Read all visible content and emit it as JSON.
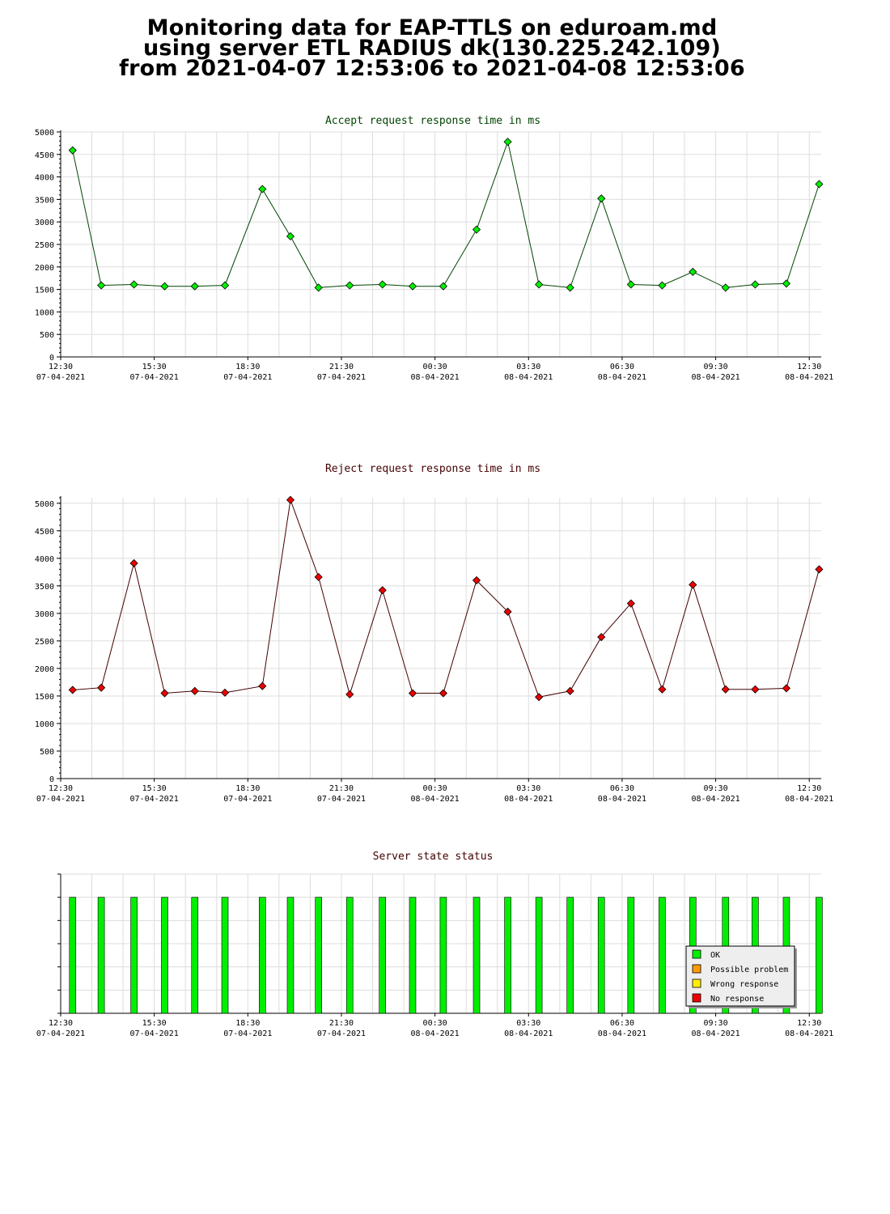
{
  "header": {
    "line1": "Monitoring data for EAP-TTLS on eduroam.md",
    "line2": "using server ETL RADIUS dk(130.225.242.109)",
    "line3": "from 2021-04-07 12:53:06 to 2021-04-08 12:53:06"
  },
  "chart_data": [
    {
      "type": "line",
      "title": "Accept request response time in ms",
      "title_color": "#004400",
      "marker_color": "#00ee00",
      "line_color": "#004400",
      "grid": true,
      "x_range": [
        "2021-04-07 12:30",
        "2021-04-08 12:53"
      ],
      "ylim": [
        0,
        5000
      ],
      "yticks": [
        0,
        500,
        1000,
        1500,
        2000,
        2500,
        3000,
        3500,
        4000,
        4500,
        5000
      ],
      "x_tick_labels": [
        {
          "time": "12:30",
          "date": "07-04-2021"
        },
        {
          "time": "15:30",
          "date": "07-04-2021"
        },
        {
          "time": "18:30",
          "date": "07-04-2021"
        },
        {
          "time": "21:30",
          "date": "07-04-2021"
        },
        {
          "time": "00:30",
          "date": "08-04-2021"
        },
        {
          "time": "03:30",
          "date": "08-04-2021"
        },
        {
          "time": "06:30",
          "date": "08-04-2021"
        },
        {
          "time": "09:30",
          "date": "08-04-2021"
        },
        {
          "time": "12:30",
          "date": "08-04-2021"
        }
      ],
      "points": [
        {
          "t": "2021-04-07 12:53",
          "y": 4590
        },
        {
          "t": "2021-04-07 13:48",
          "y": 1590
        },
        {
          "t": "2021-04-07 14:51",
          "y": 1610
        },
        {
          "t": "2021-04-07 15:50",
          "y": 1570
        },
        {
          "t": "2021-04-07 16:48",
          "y": 1570
        },
        {
          "t": "2021-04-07 17:46",
          "y": 1590
        },
        {
          "t": "2021-04-07 18:58",
          "y": 3730
        },
        {
          "t": "2021-04-07 19:52",
          "y": 2680
        },
        {
          "t": "2021-04-07 20:46",
          "y": 1540
        },
        {
          "t": "2021-04-07 21:46",
          "y": 1590
        },
        {
          "t": "2021-04-07 22:49",
          "y": 1610
        },
        {
          "t": "2021-04-07 23:47",
          "y": 1570
        },
        {
          "t": "2021-04-08 00:46",
          "y": 1570
        },
        {
          "t": "2021-04-08 01:50",
          "y": 2830
        },
        {
          "t": "2021-04-08 02:50",
          "y": 4780
        },
        {
          "t": "2021-04-08 03:50",
          "y": 1610
        },
        {
          "t": "2021-04-08 04:50",
          "y": 1540
        },
        {
          "t": "2021-04-08 05:50",
          "y": 3520
        },
        {
          "t": "2021-04-08 06:47",
          "y": 1610
        },
        {
          "t": "2021-04-08 07:47",
          "y": 1590
        },
        {
          "t": "2021-04-08 08:46",
          "y": 1890
        },
        {
          "t": "2021-04-08 09:49",
          "y": 1540
        },
        {
          "t": "2021-04-08 10:46",
          "y": 1610
        },
        {
          "t": "2021-04-08 11:46",
          "y": 1630
        },
        {
          "t": "2021-04-08 12:49",
          "y": 3840
        }
      ]
    },
    {
      "type": "line",
      "title": "Reject request response time in ms",
      "title_color": "#440000",
      "marker_color": "#ee0000",
      "line_color": "#440000",
      "grid": true,
      "x_range": [
        "2021-04-07 12:30",
        "2021-04-08 12:53"
      ],
      "ylim": [
        0,
        5100
      ],
      "yticks": [
        0,
        500,
        1000,
        1500,
        2000,
        2500,
        3000,
        3500,
        4000,
        4500,
        5000
      ],
      "x_tick_labels": [
        {
          "time": "12:30",
          "date": "07-04-2021"
        },
        {
          "time": "15:30",
          "date": "07-04-2021"
        },
        {
          "time": "18:30",
          "date": "07-04-2021"
        },
        {
          "time": "21:30",
          "date": "07-04-2021"
        },
        {
          "time": "00:30",
          "date": "08-04-2021"
        },
        {
          "time": "03:30",
          "date": "08-04-2021"
        },
        {
          "time": "06:30",
          "date": "08-04-2021"
        },
        {
          "time": "09:30",
          "date": "08-04-2021"
        },
        {
          "time": "12:30",
          "date": "08-04-2021"
        }
      ],
      "points": [
        {
          "t": "2021-04-07 12:53",
          "y": 1610
        },
        {
          "t": "2021-04-07 13:48",
          "y": 1650
        },
        {
          "t": "2021-04-07 14:51",
          "y": 3910
        },
        {
          "t": "2021-04-07 15:50",
          "y": 1550
        },
        {
          "t": "2021-04-07 16:48",
          "y": 1590
        },
        {
          "t": "2021-04-07 17:46",
          "y": 1560
        },
        {
          "t": "2021-04-07 18:58",
          "y": 1680
        },
        {
          "t": "2021-04-07 19:52",
          "y": 5060
        },
        {
          "t": "2021-04-07 20:46",
          "y": 3660
        },
        {
          "t": "2021-04-07 21:46",
          "y": 1530
        },
        {
          "t": "2021-04-07 22:49",
          "y": 3420
        },
        {
          "t": "2021-04-07 23:47",
          "y": 1550
        },
        {
          "t": "2021-04-08 00:46",
          "y": 1550
        },
        {
          "t": "2021-04-08 01:50",
          "y": 3600
        },
        {
          "t": "2021-04-08 02:50",
          "y": 3030
        },
        {
          "t": "2021-04-08 03:50",
          "y": 1480
        },
        {
          "t": "2021-04-08 04:50",
          "y": 1590
        },
        {
          "t": "2021-04-08 05:50",
          "y": 2570
        },
        {
          "t": "2021-04-08 06:47",
          "y": 3180
        },
        {
          "t": "2021-04-08 07:47",
          "y": 1620
        },
        {
          "t": "2021-04-08 08:46",
          "y": 3520
        },
        {
          "t": "2021-04-08 09:49",
          "y": 1620
        },
        {
          "t": "2021-04-08 10:46",
          "y": 1620
        },
        {
          "t": "2021-04-08 11:46",
          "y": 1640
        },
        {
          "t": "2021-04-08 12:49",
          "y": 3800
        }
      ]
    },
    {
      "type": "bar",
      "title": "Server state status",
      "title_color": "#440000",
      "x_range": [
        "2021-04-07 12:30",
        "2021-04-08 12:53"
      ],
      "x_tick_labels": [
        {
          "time": "12:30",
          "date": "07-04-2021"
        },
        {
          "time": "15:30",
          "date": "07-04-2021"
        },
        {
          "time": "18:30",
          "date": "07-04-2021"
        },
        {
          "time": "21:30",
          "date": "07-04-2021"
        },
        {
          "time": "00:30",
          "date": "08-04-2021"
        },
        {
          "time": "03:30",
          "date": "08-04-2021"
        },
        {
          "time": "06:30",
          "date": "08-04-2021"
        },
        {
          "time": "09:30",
          "date": "08-04-2021"
        },
        {
          "time": "12:30",
          "date": "08-04-2021"
        }
      ],
      "status_level": 5,
      "level_max": 6,
      "legend": [
        {
          "label": "OK",
          "color": "#00ee00"
        },
        {
          "label": "Possible problem",
          "color": "#ff9900"
        },
        {
          "label": "Wrong response",
          "color": "#ffee00"
        },
        {
          "label": "No response",
          "color": "#ee0000"
        }
      ],
      "legend_position": "bottom-right",
      "bars": [
        {
          "t": "2021-04-07 12:53",
          "state": "OK"
        },
        {
          "t": "2021-04-07 13:48",
          "state": "OK"
        },
        {
          "t": "2021-04-07 14:51",
          "state": "OK"
        },
        {
          "t": "2021-04-07 15:50",
          "state": "OK"
        },
        {
          "t": "2021-04-07 16:48",
          "state": "OK"
        },
        {
          "t": "2021-04-07 17:46",
          "state": "OK"
        },
        {
          "t": "2021-04-07 18:58",
          "state": "OK"
        },
        {
          "t": "2021-04-07 19:52",
          "state": "OK"
        },
        {
          "t": "2021-04-07 20:46",
          "state": "OK"
        },
        {
          "t": "2021-04-07 21:46",
          "state": "OK"
        },
        {
          "t": "2021-04-07 22:49",
          "state": "OK"
        },
        {
          "t": "2021-04-07 23:47",
          "state": "OK"
        },
        {
          "t": "2021-04-08 00:46",
          "state": "OK"
        },
        {
          "t": "2021-04-08 01:50",
          "state": "OK"
        },
        {
          "t": "2021-04-08 02:50",
          "state": "OK"
        },
        {
          "t": "2021-04-08 03:50",
          "state": "OK"
        },
        {
          "t": "2021-04-08 04:50",
          "state": "OK"
        },
        {
          "t": "2021-04-08 05:50",
          "state": "OK"
        },
        {
          "t": "2021-04-08 06:47",
          "state": "OK"
        },
        {
          "t": "2021-04-08 07:47",
          "state": "OK"
        },
        {
          "t": "2021-04-08 08:46",
          "state": "OK"
        },
        {
          "t": "2021-04-08 09:49",
          "state": "OK"
        },
        {
          "t": "2021-04-08 10:46",
          "state": "OK"
        },
        {
          "t": "2021-04-08 11:46",
          "state": "OK"
        },
        {
          "t": "2021-04-08 12:49",
          "state": "OK"
        }
      ]
    }
  ]
}
